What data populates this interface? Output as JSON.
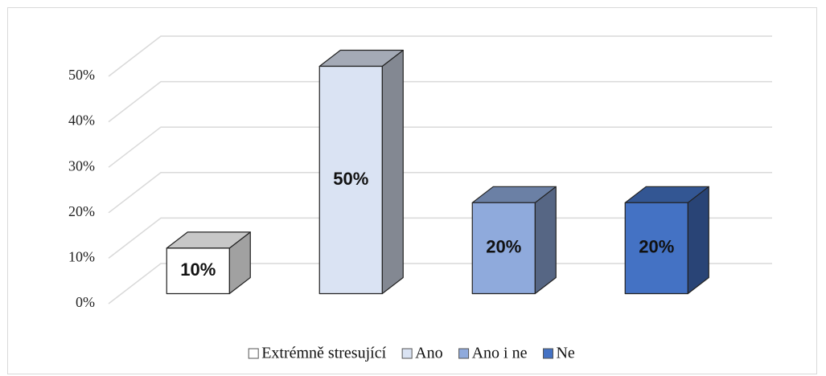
{
  "chart_data": {
    "type": "bar3d",
    "categories": [
      "Extrémně stresující",
      "Ano",
      "Ano i ne",
      "Ne"
    ],
    "values": [
      10,
      50,
      20,
      20
    ],
    "value_labels": [
      "10%",
      "50%",
      "20%",
      "20%"
    ],
    "colors": [
      "#ffffff",
      "#dae3f3",
      "#8faadc",
      "#4472c4"
    ],
    "ylim": [
      0,
      50
    ],
    "yticks": [
      {
        "value": 0,
        "label": "0%"
      },
      {
        "value": 10,
        "label": "10%"
      },
      {
        "value": 20,
        "label": "20%"
      },
      {
        "value": 30,
        "label": "30%"
      },
      {
        "value": 40,
        "label": "40%"
      },
      {
        "value": 50,
        "label": "50%"
      }
    ],
    "grid": true,
    "legend": "bottom"
  }
}
